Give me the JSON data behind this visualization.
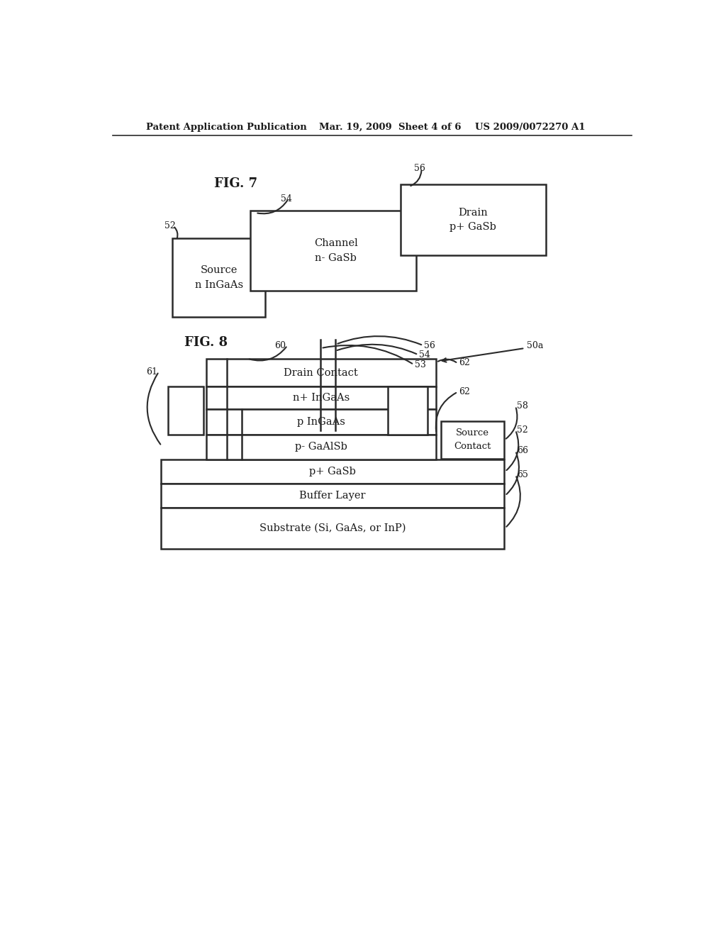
{
  "bg_color": "#ffffff",
  "header_left": "Patent Application Publication",
  "header_mid": "Mar. 19, 2009  Sheet 4 of 6",
  "header_right": "US 2009/0072270 A1",
  "fig7_label": "FIG. 7",
  "fig8_label": "FIG. 8",
  "fig7_source_label": "Source\nn InGaAs",
  "fig7_channel_label": "Channel\nn- GaSb",
  "fig7_drain_label": "Drain\np+ GaSb",
  "fig7_label_52": "52",
  "fig7_label_54": "54",
  "fig7_label_56": "56",
  "fig8_layers": [
    "Drain Contact",
    "n+ InGaAs",
    "p InGaAs",
    "p- GaAlSb",
    "p+ GaSb",
    "Buffer Layer",
    "Substrate (Si, GaAs, or InP)"
  ],
  "fig8_label_50a": "50a",
  "fig8_label_60": "60",
  "fig8_label_56b": "56",
  "fig8_label_54b": "54",
  "fig8_label_53": "53",
  "fig8_label_62a": "62",
  "fig8_label_62b": "62",
  "fig8_label_61": "61",
  "fig8_label_58": "58",
  "fig8_label_52": "52",
  "fig8_label_66": "66",
  "fig8_label_65": "65",
  "fig8_source_contact": "Source\nContact",
  "line_color": "#2a2a2a",
  "text_color": "#1a1a1a",
  "line_width": 1.8
}
